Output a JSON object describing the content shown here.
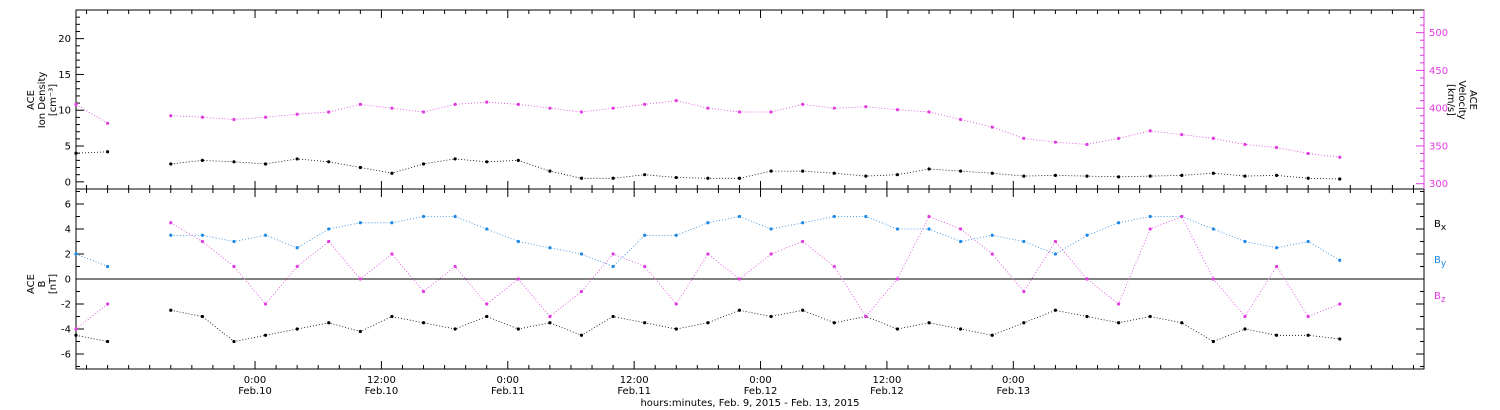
{
  "colors": {
    "black": "#000000",
    "magenta": "#e23be0",
    "blue": "#1e88e5",
    "axis": "#000000",
    "background": "#ffffff"
  },
  "chart_data": [
    {
      "type": "scatter",
      "panel": "top",
      "ylabel": [
        "ACE",
        "Ion Density",
        "[cm⁻³]"
      ],
      "y2label": [
        "ACE",
        "Velocity",
        "[km/s]"
      ],
      "ylim": [
        -1,
        24
      ],
      "y2lim": [
        293,
        530
      ],
      "yticks": [
        "0",
        "5",
        "10",
        "15",
        "20"
      ],
      "y2ticks": [
        "300",
        "350",
        "400",
        "450",
        "500"
      ],
      "series": [
        {
          "name": "Ion Density",
          "color": "#000000",
          "axis": "left",
          "x_hours": [
            -17.0,
            -14.0,
            -11.0,
            -8.0,
            -5.0,
            -2.0,
            1.0,
            4.0,
            7.0,
            10.0,
            13.0,
            16.0,
            19.0,
            22.0,
            25.0,
            28.0,
            31.0,
            34.0,
            37.0,
            40.0,
            43.0,
            46.0,
            49.0,
            52.0,
            55.0,
            58.0,
            61.0,
            64.0,
            67.0,
            70.0,
            73.0,
            76.0,
            79.0,
            82.0,
            85.0,
            88.0,
            91.0,
            94.0,
            97.0,
            100.0,
            103.0
          ],
          "values": [
            4.0,
            4.2,
            null,
            2.5,
            3.0,
            2.8,
            2.5,
            3.2,
            2.8,
            2.0,
            1.2,
            2.5,
            3.2,
            2.8,
            3.0,
            1.5,
            0.5,
            0.5,
            1.0,
            0.6,
            0.5,
            0.5,
            1.5,
            1.5,
            1.2,
            0.8,
            1.0,
            1.8,
            1.5,
            1.2,
            0.8,
            0.9,
            0.8,
            0.7,
            0.8,
            0.9,
            1.2,
            0.8,
            0.9,
            0.5,
            0.4
          ]
        },
        {
          "name": "Velocity",
          "color": "#e23be0",
          "axis": "right",
          "x_hours": [
            -17.0,
            -14.0,
            -11.0,
            -8.0,
            -5.0,
            -2.0,
            1.0,
            4.0,
            7.0,
            10.0,
            13.0,
            16.0,
            19.0,
            22.0,
            25.0,
            28.0,
            31.0,
            34.0,
            37.0,
            40.0,
            43.0,
            46.0,
            49.0,
            52.0,
            55.0,
            58.0,
            61.0,
            64.0,
            67.0,
            70.0,
            73.0,
            76.0,
            79.0,
            82.0,
            85.0,
            88.0,
            91.0,
            94.0,
            97.0,
            100.0,
            103.0
          ],
          "values": [
            405,
            380,
            null,
            390,
            388,
            385,
            388,
            392,
            395,
            405,
            400,
            395,
            405,
            408,
            405,
            400,
            395,
            400,
            405,
            410,
            400,
            395,
            395,
            405,
            400,
            402,
            398,
            395,
            385,
            375,
            360,
            355,
            352,
            360,
            370,
            365,
            360,
            352,
            348,
            340,
            335
          ]
        }
      ]
    },
    {
      "type": "scatter",
      "panel": "bottom",
      "ylabel": [
        "ACE",
        "B",
        "[nT]"
      ],
      "ylim": [
        -7.2,
        7.2
      ],
      "yticks": [
        "-6",
        "-4",
        "-2",
        "0",
        "2",
        "4",
        "6"
      ],
      "series": [
        {
          "name": "Bx",
          "color": "#000000",
          "x_hours": [
            -17.0,
            -14.0,
            -11.0,
            -8.0,
            -5.0,
            -2.0,
            1.0,
            4.0,
            7.0,
            10.0,
            13.0,
            16.0,
            19.0,
            22.0,
            25.0,
            28.0,
            31.0,
            34.0,
            37.0,
            40.0,
            43.0,
            46.0,
            49.0,
            52.0,
            55.0,
            58.0,
            61.0,
            64.0,
            67.0,
            70.0,
            73.0,
            76.0,
            79.0,
            82.0,
            85.0,
            88.0,
            91.0,
            94.0,
            97.0,
            100.0,
            103.0
          ],
          "values": [
            -4.5,
            -5.0,
            null,
            -2.5,
            -3.0,
            -5.0,
            -4.5,
            -4.0,
            -3.5,
            -4.2,
            -3.0,
            -3.5,
            -4.0,
            -3.0,
            -4.0,
            -3.5,
            -4.5,
            -3.0,
            -3.5,
            -4.0,
            -3.5,
            -2.5,
            -3.0,
            -2.5,
            -3.5,
            -3.0,
            -4.0,
            -3.5,
            -4.0,
            -4.5,
            -3.5,
            -2.5,
            -3.0,
            -3.5,
            -3.0,
            -3.5,
            -5.0,
            -4.0,
            -4.5,
            -4.5,
            -4.8
          ]
        },
        {
          "name": "By",
          "color": "#1e88e5",
          "x_hours": [
            -17.0,
            -14.0,
            -11.0,
            -8.0,
            -5.0,
            -2.0,
            1.0,
            4.0,
            7.0,
            10.0,
            13.0,
            16.0,
            19.0,
            22.0,
            25.0,
            28.0,
            31.0,
            34.0,
            37.0,
            40.0,
            43.0,
            46.0,
            49.0,
            52.0,
            55.0,
            58.0,
            61.0,
            64.0,
            67.0,
            70.0,
            73.0,
            76.0,
            79.0,
            82.0,
            85.0,
            88.0,
            91.0,
            94.0,
            97.0,
            100.0,
            103.0
          ],
          "values": [
            2.0,
            1.0,
            null,
            3.5,
            3.5,
            3.0,
            3.5,
            2.5,
            4.0,
            4.5,
            4.5,
            5.0,
            5.0,
            4.0,
            3.0,
            2.5,
            2.0,
            1.0,
            3.5,
            3.5,
            4.5,
            5.0,
            4.0,
            4.5,
            5.0,
            5.0,
            4.0,
            4.0,
            3.0,
            3.5,
            3.0,
            2.0,
            3.5,
            4.5,
            5.0,
            5.0,
            4.0,
            3.0,
            2.5,
            3.0,
            1.5
          ]
        },
        {
          "name": "Bz",
          "color": "#e23be0",
          "x_hours": [
            -17.0,
            -14.0,
            -11.0,
            -8.0,
            -5.0,
            -2.0,
            1.0,
            4.0,
            7.0,
            10.0,
            13.0,
            16.0,
            19.0,
            22.0,
            25.0,
            28.0,
            31.0,
            34.0,
            37.0,
            40.0,
            43.0,
            46.0,
            49.0,
            52.0,
            55.0,
            58.0,
            61.0,
            64.0,
            67.0,
            70.0,
            73.0,
            76.0,
            79.0,
            82.0,
            85.0,
            88.0,
            91.0,
            94.0,
            97.0,
            100.0,
            103.0
          ],
          "values": [
            -4.0,
            -2.0,
            null,
            4.5,
            3.0,
            1.0,
            -2.0,
            1.0,
            3.0,
            0.0,
            2.0,
            -1.0,
            1.0,
            -2.0,
            0.0,
            -3.0,
            -1.0,
            2.0,
            1.0,
            -2.0,
            2.0,
            0.0,
            2.0,
            3.0,
            1.0,
            -3.0,
            0.0,
            5.0,
            4.0,
            2.0,
            -1.0,
            3.0,
            0.0,
            -2.0,
            4.0,
            5.0,
            0.0,
            -3.0,
            1.0,
            -3.0,
            -2.0
          ]
        }
      ],
      "legend": [
        {
          "label": "B",
          "sub": "x",
          "color": "#000000"
        },
        {
          "label": "B",
          "sub": "y",
          "color": "#1e88e5"
        },
        {
          "label": "B",
          "sub": "z",
          "color": "#e23be0"
        }
      ]
    }
  ],
  "x_axis": {
    "xlim_hours": [
      -17,
      111
    ],
    "ticks": [
      {
        "hours": 0,
        "time": "0:00",
        "date": "Feb.10"
      },
      {
        "hours": 12,
        "time": "12:00",
        "date": "Feb.10"
      },
      {
        "hours": 24,
        "time": "0:00",
        "date": "Feb.11"
      },
      {
        "hours": 36,
        "time": "12:00",
        "date": "Feb.11"
      },
      {
        "hours": 48,
        "time": "0:00",
        "date": "Feb.12"
      },
      {
        "hours": 60,
        "time": "12:00",
        "date": "Feb.12"
      },
      {
        "hours": 72,
        "time": "0:00",
        "date": "Feb.13"
      }
    ],
    "title": "hours:minutes, Feb.  9, 2015 - Feb. 13, 2015"
  }
}
